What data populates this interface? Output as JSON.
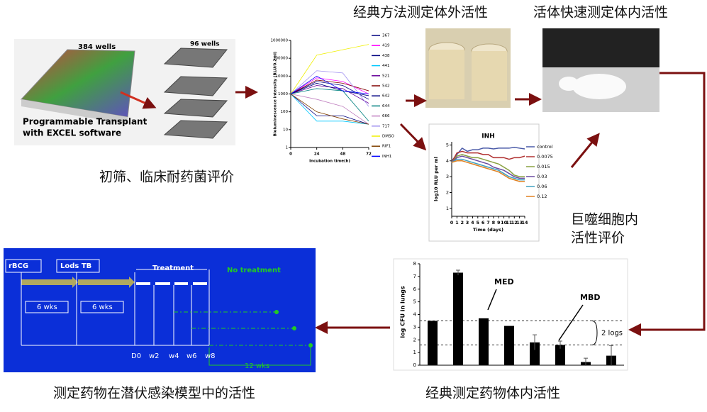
{
  "captions": {
    "in_vitro": "经典方法测定体外活性",
    "in_vivo_fast": "活体快速测定体内活性",
    "screening": "初筛、临床耐药菌评价",
    "macrophage": [
      "巨噬细胞内",
      "活性评价"
    ],
    "latent": "测定药物在潜伏感染模型中的活性",
    "in_vivo_classic": "经典测定药物体内活性"
  },
  "plate_panel": {
    "label_384": "384 wells",
    "label_96": "96 wells",
    "caption": [
      "Programmable Transplant",
      "with EXCEL software"
    ]
  },
  "bioluminescence_chart": {
    "type": "line",
    "ylabel": "Bioluminescence intensity (RLU/0.2ml)",
    "xlabel": "Incubation time(h)",
    "log_scale": true,
    "x": [
      0,
      24,
      48,
      72
    ],
    "xlim": [
      0,
      72
    ],
    "xticks": [
      0,
      24,
      48,
      72
    ],
    "ylim": [
      1,
      1000000
    ],
    "yticks": [
      1,
      10,
      100,
      1000,
      10000,
      100000,
      1000000
    ],
    "series": [
      {
        "name": "367",
        "color": "#000080",
        "values": [
          1000,
          5000,
          3000,
          500
        ]
      },
      {
        "name": "419",
        "color": "#ff00ff",
        "values": [
          1000,
          8000,
          5000,
          1000
        ]
      },
      {
        "name": "438",
        "color": "#000080",
        "values": [
          1000,
          60,
          60,
          20
        ]
      },
      {
        "name": "441",
        "color": "#00c8ff",
        "values": [
          1000,
          30,
          30,
          20
        ]
      },
      {
        "name": "521",
        "color": "#660099",
        "values": [
          1000,
          3000,
          2000,
          300
        ]
      },
      {
        "name": "542",
        "color": "#800000",
        "values": [
          1000,
          6000,
          4000,
          1500
        ]
      },
      {
        "name": "642",
        "color": "#000080",
        "values": [
          1000,
          4000,
          1500,
          800
        ]
      },
      {
        "name": "644",
        "color": "#008080",
        "values": [
          1000,
          2000,
          1500,
          30
        ]
      },
      {
        "name": "666",
        "color": "#c080c0",
        "values": [
          1000,
          500,
          200,
          20
        ]
      },
      {
        "name": "717",
        "color": "#a090f0",
        "values": [
          1000,
          20000,
          15000,
          200
        ]
      },
      {
        "name": "DMSO",
        "color": "#f0f000",
        "values": [
          1000,
          150000,
          300000,
          600000
        ]
      },
      {
        "name": "RIF1",
        "color": "#804000",
        "values": [
          1000,
          100,
          40,
          20
        ]
      },
      {
        "name": "INH1",
        "color": "#0000ff",
        "values": [
          1000,
          10000,
          1500,
          1000
        ]
      }
    ]
  },
  "inh_chart": {
    "type": "line",
    "title": "INH",
    "ylabel": "log10 RLU per ml",
    "xlabel": "Time (days)",
    "x": [
      0,
      1,
      2,
      3,
      4,
      5,
      6,
      7,
      8,
      9,
      10,
      11,
      12,
      13,
      14
    ],
    "xlim": [
      0,
      14
    ],
    "xticks": [
      0,
      1,
      2,
      3,
      4,
      5,
      6,
      7,
      8,
      9,
      10,
      11,
      12,
      13,
      14
    ],
    "ylim": [
      0.5,
      5.2
    ],
    "yticks": [
      1,
      2,
      3,
      4,
      5
    ],
    "series": [
      {
        "name": "control",
        "color": "#4a5aa8",
        "values": [
          4,
          4.4,
          4.8,
          4.6,
          4.7,
          4.7,
          4.8,
          4.8,
          4.75,
          4.8,
          4.8,
          4.8,
          4.85,
          4.8,
          4.75
        ]
      },
      {
        "name": "0.0075",
        "color": "#b03030",
        "values": [
          3.9,
          4.5,
          4.6,
          4.5,
          4.5,
          4.5,
          4.4,
          4.4,
          4.2,
          4.2,
          4.2,
          4.1,
          4.2,
          4.2,
          4.3
        ]
      },
      {
        "name": "0.015",
        "color": "#88a040",
        "values": [
          3.9,
          4.3,
          4.4,
          4.3,
          4.2,
          4.2,
          4.1,
          4,
          3.9,
          3.8,
          3.6,
          3.4,
          3.1,
          3,
          3
        ]
      },
      {
        "name": "0.03",
        "color": "#6a4aa0",
        "values": [
          3.9,
          4.2,
          4.3,
          4.2,
          4.1,
          4,
          3.9,
          3.8,
          3.6,
          3.5,
          3.4,
          3.2,
          3,
          2.9,
          2.9
        ]
      },
      {
        "name": "0.06",
        "color": "#40a0c0",
        "values": [
          3.9,
          4.1,
          4.1,
          4,
          3.9,
          3.8,
          3.7,
          3.6,
          3.5,
          3.4,
          3.2,
          3,
          2.9,
          2.8,
          2.8
        ]
      },
      {
        "name": "0.12",
        "color": "#e08020",
        "values": [
          3.9,
          4,
          4,
          3.9,
          3.8,
          3.7,
          3.6,
          3.5,
          3.4,
          3.3,
          3.1,
          2.9,
          2.8,
          2.7,
          2.7
        ]
      }
    ]
  },
  "timeline": {
    "rbcg": "rBCG",
    "lods": "Lods TB",
    "treatment": "Treatment",
    "no_treatment": "No treatment",
    "wks_1": "6 wks",
    "wks_2": "6 wks",
    "points": [
      "D0",
      "w2",
      "w4",
      "w6",
      "w8"
    ],
    "wks_12": "12 wks"
  },
  "cfu_chart": {
    "type": "bar",
    "ylabel": "log CFU in lungs",
    "ylim": [
      0,
      8
    ],
    "yticks": [
      0,
      1,
      2,
      3,
      4,
      5,
      6,
      7,
      8
    ],
    "values": [
      3.5,
      7.3,
      3.7,
      3.1,
      1.8,
      1.6,
      0.25,
      0.75
    ],
    "errors": [
      0,
      0.2,
      0,
      0,
      0.6,
      0.3,
      0.3,
      0.8
    ],
    "reference_lines": [
      3.5,
      1.6
    ],
    "annotations": {
      "med": "MED",
      "mbd": "MBD",
      "logs": "2 logs"
    }
  }
}
